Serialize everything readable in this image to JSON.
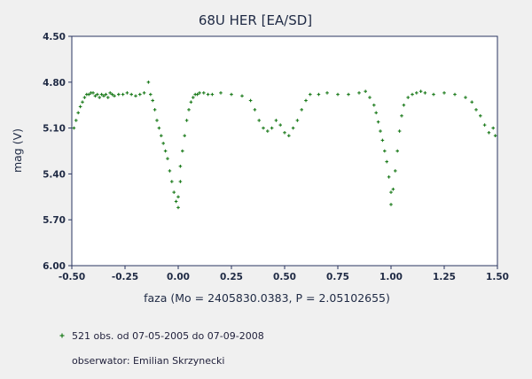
{
  "colors": {
    "background": "#f0f0f0",
    "plot_background": "#ffffff",
    "point": "#1a7a1a",
    "grid": "#c8c8c8",
    "text": "#1f2a44"
  },
  "legend": {
    "obs_text": "521 obs. od 07-05-2005 do 07-09-2008",
    "observer_text": "obserwator: Emilian Skrzynecki"
  },
  "chart_data": {
    "type": "scatter",
    "title": "68U HER [EA/SD]",
    "xlabel": "faza (Mo = 2405830.0383, P = 2.05102655)",
    "ylabel": "mag (V)",
    "xlim": [
      -0.5,
      1.5
    ],
    "ylim": [
      4.5,
      6.0
    ],
    "y_inverted": true,
    "grid": true,
    "legend_placement": "bottom-left",
    "x_ticks": [
      "-0.50",
      "-0.25",
      "0.00",
      "0.25",
      "0.50",
      "0.75",
      "1.00",
      "1.25",
      "1.50"
    ],
    "y_ticks": [
      "4.50",
      "4.80",
      "5.10",
      "5.40",
      "5.70",
      "6.00"
    ],
    "series": [
      {
        "name": "521 obs. od 07-05-2005 do 07-09-2008",
        "marker": "plus",
        "x": [
          -0.49,
          -0.48,
          -0.47,
          -0.46,
          -0.45,
          -0.44,
          -0.43,
          -0.42,
          -0.41,
          -0.4,
          -0.39,
          -0.38,
          -0.37,
          -0.36,
          -0.35,
          -0.34,
          -0.33,
          -0.32,
          -0.31,
          -0.3,
          -0.28,
          -0.26,
          -0.24,
          -0.22,
          -0.2,
          -0.18,
          -0.16,
          -0.14,
          -0.13,
          -0.12,
          -0.11,
          -0.1,
          -0.09,
          -0.08,
          -0.07,
          -0.06,
          -0.05,
          -0.04,
          -0.03,
          -0.02,
          -0.01,
          0.0,
          0.0,
          0.01,
          0.01,
          0.02,
          0.03,
          0.04,
          0.05,
          0.06,
          0.07,
          0.08,
          0.09,
          0.1,
          0.12,
          0.14,
          0.16,
          0.2,
          0.25,
          0.3,
          0.34,
          0.36,
          0.38,
          0.4,
          0.42,
          0.44,
          0.46,
          0.48,
          0.5,
          0.52,
          0.54,
          0.56,
          0.58,
          0.6,
          0.62,
          0.66,
          0.7,
          0.75,
          0.8,
          0.85,
          0.88,
          0.9,
          0.92,
          0.93,
          0.94,
          0.95,
          0.96,
          0.97,
          0.98,
          0.99,
          1.0,
          1.0,
          1.01,
          1.02,
          1.03,
          1.04,
          1.05,
          1.06,
          1.08,
          1.1,
          1.12,
          1.14,
          1.16,
          1.2,
          1.25,
          1.3,
          1.35,
          1.38,
          1.4,
          1.42,
          1.44,
          1.46,
          1.48,
          1.49
        ],
        "y": [
          5.1,
          5.05,
          5.0,
          4.96,
          4.93,
          4.9,
          4.88,
          4.88,
          4.87,
          4.87,
          4.89,
          4.88,
          4.9,
          4.88,
          4.89,
          4.88,
          4.9,
          4.87,
          4.88,
          4.89,
          4.88,
          4.88,
          4.87,
          4.88,
          4.89,
          4.88,
          4.87,
          4.8,
          4.88,
          4.92,
          4.98,
          5.05,
          5.1,
          5.15,
          5.2,
          5.25,
          5.3,
          5.38,
          5.45,
          5.52,
          5.58,
          5.62,
          5.55,
          5.45,
          5.35,
          5.25,
          5.15,
          5.05,
          4.98,
          4.93,
          4.9,
          4.88,
          4.88,
          4.87,
          4.87,
          4.88,
          4.88,
          4.87,
          4.88,
          4.89,
          4.92,
          4.98,
          5.05,
          5.1,
          5.12,
          5.1,
          5.05,
          5.08,
          5.13,
          5.15,
          5.1,
          5.05,
          4.98,
          4.92,
          4.88,
          4.88,
          4.87,
          4.88,
          4.88,
          4.87,
          4.86,
          4.9,
          4.95,
          5.0,
          5.06,
          5.12,
          5.18,
          5.25,
          5.32,
          5.42,
          5.52,
          5.6,
          5.5,
          5.38,
          5.25,
          5.12,
          5.02,
          4.95,
          4.9,
          4.88,
          4.87,
          4.86,
          4.87,
          4.88,
          4.87,
          4.88,
          4.9,
          4.93,
          4.98,
          5.02,
          5.08,
          5.13,
          5.1,
          5.15
        ]
      }
    ]
  }
}
